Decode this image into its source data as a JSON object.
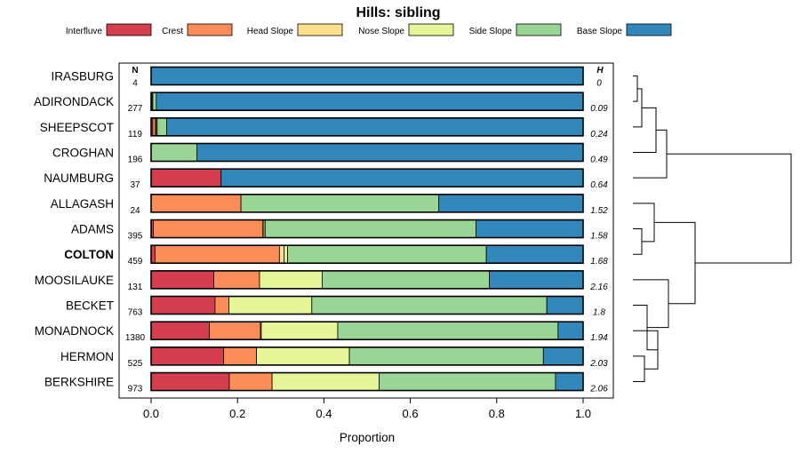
{
  "chart_data": {
    "type": "bar",
    "orientation": "horizontal",
    "stacked": true,
    "title": "Hills: sibling",
    "xlabel": "Proportion",
    "ylabel": "",
    "xlim": [
      0,
      1
    ],
    "xticks": [
      "0.0",
      "0.2",
      "0.4",
      "0.6",
      "0.8",
      "1.0"
    ],
    "n_header": "N",
    "h_header": "H",
    "highlight": "COLTON",
    "legend_placement": "top",
    "series": [
      {
        "name": "Interfluve",
        "color": "#d53e4f"
      },
      {
        "name": "Crest",
        "color": "#fc8d59"
      },
      {
        "name": "Head Slope",
        "color": "#fee08b"
      },
      {
        "name": "Nose Slope",
        "color": "#e6f598"
      },
      {
        "name": "Side Slope",
        "color": "#99d594"
      },
      {
        "name": "Base Slope",
        "color": "#3288bd"
      }
    ],
    "rows": [
      {
        "name": "IRASBURG",
        "n": "4",
        "h": "0",
        "values": [
          0,
          0,
          0,
          0,
          0,
          1.0
        ]
      },
      {
        "name": "ADIRONDACK",
        "n": "277",
        "h": "0.09",
        "values": [
          0,
          0,
          0.002,
          0.002,
          0.008,
          0.988
        ]
      },
      {
        "name": "SHEEPSCOT",
        "n": "119",
        "h": "0.24",
        "values": [
          0.004,
          0.006,
          0.002,
          0.002,
          0.022,
          0.964
        ]
      },
      {
        "name": "CROGHAN",
        "n": "196",
        "h": "0.49",
        "values": [
          0,
          0,
          0,
          0,
          0.106,
          0.894
        ]
      },
      {
        "name": "NAUMBURG",
        "n": "37",
        "h": "0.64",
        "values": [
          0.162,
          0,
          0,
          0,
          0,
          0.838
        ]
      },
      {
        "name": "ALLAGASH",
        "n": "24",
        "h": "1.52",
        "values": [
          0,
          0.208,
          0,
          0,
          0.458,
          0.334
        ]
      },
      {
        "name": "ADAMS",
        "n": "395",
        "h": "1.58",
        "values": [
          0.005,
          0.253,
          0.003,
          0.003,
          0.488,
          0.248
        ]
      },
      {
        "name": "COLTON",
        "n": "459",
        "h": "1.68",
        "values": [
          0.009,
          0.288,
          0.011,
          0.008,
          0.46,
          0.224
        ]
      },
      {
        "name": "MOOSILAUKE",
        "n": "131",
        "h": "2.16",
        "values": [
          0.145,
          0.106,
          0,
          0.145,
          0.387,
          0.217
        ]
      },
      {
        "name": "BECKET",
        "n": "763",
        "h": "1.8",
        "values": [
          0.148,
          0.032,
          0,
          0.192,
          0.544,
          0.084
        ]
      },
      {
        "name": "MONADNOCK",
        "n": "1380",
        "h": "1.94",
        "values": [
          0.135,
          0.118,
          0.002,
          0.177,
          0.51,
          0.058
        ]
      },
      {
        "name": "HERMON",
        "n": "525",
        "h": "2.03",
        "values": [
          0.168,
          0.076,
          0,
          0.215,
          0.449,
          0.092
        ]
      },
      {
        "name": "BERKSHIRE",
        "n": "973",
        "h": "2.06",
        "values": [
          0.181,
          0.099,
          0,
          0.248,
          0.408,
          0.064
        ]
      }
    ]
  }
}
